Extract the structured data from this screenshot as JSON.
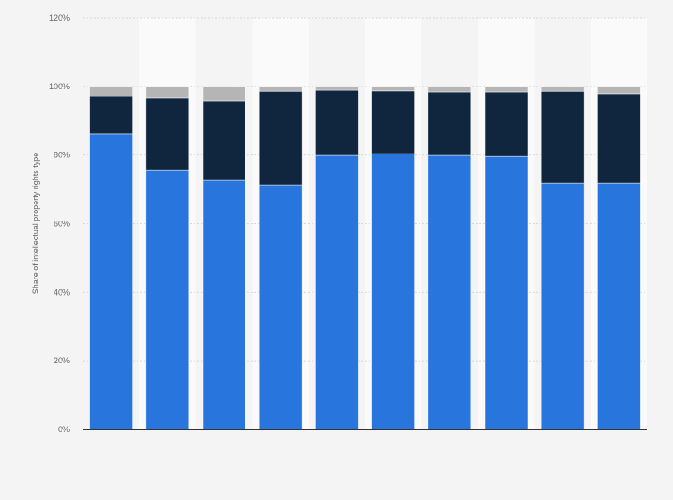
{
  "chart_data": {
    "type": "bar",
    "stacked": true,
    "title": "",
    "xlabel": "",
    "ylabel": "Share of intellectual property rights type",
    "ylim": [
      0,
      120
    ],
    "yticks": [
      "0%",
      "20%",
      "40%",
      "60%",
      "80%",
      "100%",
      "120%"
    ],
    "ytick_values": [
      0,
      20,
      40,
      60,
      80,
      100,
      120
    ],
    "grid": true,
    "categories": [
      "",
      "",
      "",
      "",
      "",
      "",
      "",
      "",
      "",
      ""
    ],
    "series": [
      {
        "color": "#2876dd",
        "values": [
          86.2,
          75.7,
          72.6,
          71.3,
          79.9,
          80.4,
          79.9,
          79.6,
          71.8,
          71.8
        ]
      },
      {
        "color": "#10263e",
        "values": [
          10.9,
          20.9,
          23.2,
          27.3,
          19.0,
          18.3,
          18.5,
          18.8,
          26.8,
          26.1
        ]
      },
      {
        "color": "#b5b5b5",
        "values": [
          2.9,
          3.4,
          4.2,
          1.4,
          1.1,
          1.3,
          1.6,
          1.6,
          1.4,
          2.1
        ]
      }
    ]
  }
}
